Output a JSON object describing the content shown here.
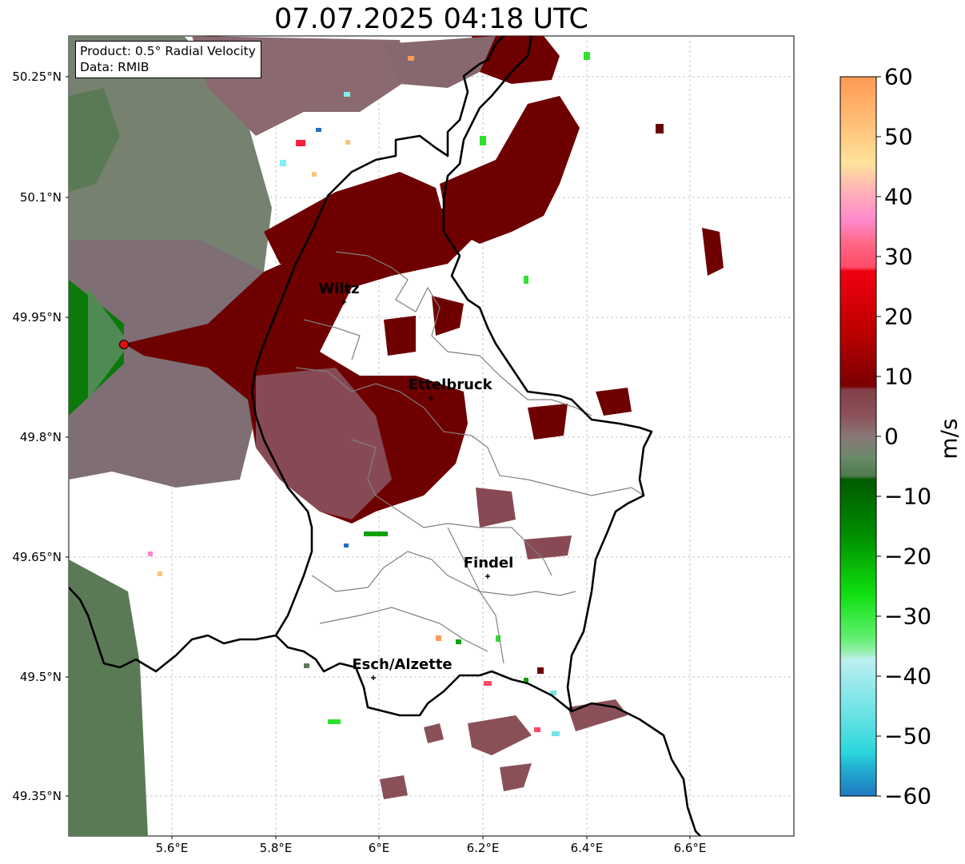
{
  "title": "07.07.2025 04:18 UTC",
  "info_box": {
    "product": "Product: 0.5° Radial Velocity",
    "data": "Data: RMIB"
  },
  "map": {
    "lon_range": [
      5.4,
      6.8
    ],
    "lat_range": [
      49.3,
      50.3
    ],
    "lat_ticks": [
      "50.25°N",
      "50.1°N",
      "49.95°N",
      "49.8°N",
      "49.65°N",
      "49.5°N",
      "49.35°N"
    ],
    "lon_ticks": [
      "5.6°E",
      "5.8°E",
      "6°E",
      "6.2°E",
      "6.4°E",
      "6.6°E"
    ],
    "grid": true,
    "radar_site": {
      "lon": 5.505,
      "lat": 49.914
    }
  },
  "cities": [
    {
      "name": "Wiltz",
      "lon": 5.932,
      "lat": 49.967
    },
    {
      "name": "Ettelbruck",
      "lon": 6.104,
      "lat": 49.847
    },
    {
      "name": "Findel",
      "lon": 6.212,
      "lat": 49.626
    },
    {
      "name": "Esch/Alzette",
      "lon": 5.981,
      "lat": 49.496
    }
  ],
  "colorbar": {
    "label": "m/s",
    "min": -60,
    "max": 60,
    "tick_labels": [
      "60",
      "50",
      "40",
      "30",
      "20",
      "10",
      "0",
      "−10",
      "−20",
      "−30",
      "−40",
      "−50",
      "−60"
    ]
  },
  "colors": {
    "strong_outbound": "#6e0000",
    "weak_outbound": "#8a4a52",
    "near_zero": "#7a7272",
    "weak_inbound": "#5a7a55",
    "strong_inbound": "#006400",
    "radar_marker": "#e01010",
    "country_border": "#000000",
    "canton_border": "#808080"
  }
}
